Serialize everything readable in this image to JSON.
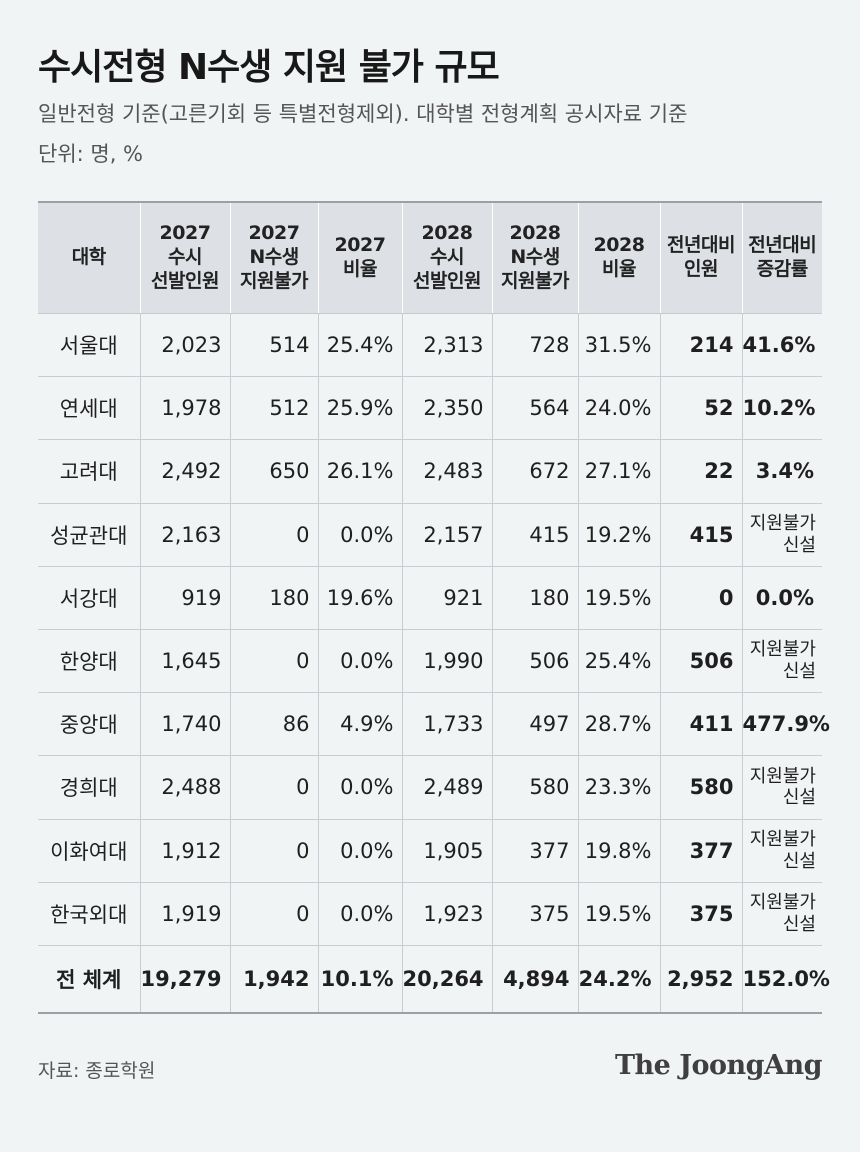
{
  "chart_data": {
    "type": "table",
    "title": "수시전형 N수생 지원 불가 규모",
    "subtitle": "일반전형 기준(고른기회 등 특별전형제외). 대학별 전형계획 공시자료 기준",
    "unit": "단위: 명, %",
    "columns": [
      [
        "대학"
      ],
      [
        "2027",
        "수시",
        "선발인원"
      ],
      [
        "2027",
        "N수생",
        "지원불가"
      ],
      [
        "2027",
        "비율"
      ],
      [
        "2028",
        "수시",
        "선발인원"
      ],
      [
        "2028",
        "N수생",
        "지원불가"
      ],
      [
        "2028",
        "비율"
      ],
      [
        "전년대비",
        "인원"
      ],
      [
        "전년대비",
        "증감률"
      ]
    ],
    "rows": [
      [
        "서울대",
        "2,023",
        "514",
        "25.4%",
        "2,313",
        "728",
        "31.5%",
        "214",
        "41.6%"
      ],
      [
        "연세대",
        "1,978",
        "512",
        "25.9%",
        "2,350",
        "564",
        "24.0%",
        "52",
        "10.2%"
      ],
      [
        "고려대",
        "2,492",
        "650",
        "26.1%",
        "2,483",
        "672",
        "27.1%",
        "22",
        "3.4%"
      ],
      [
        "성균관대",
        "2,163",
        "0",
        "0.0%",
        "2,157",
        "415",
        "19.2%",
        "415",
        "지원불가 신설"
      ],
      [
        "서강대",
        "919",
        "180",
        "19.6%",
        "921",
        "180",
        "19.5%",
        "0",
        "0.0%"
      ],
      [
        "한양대",
        "1,645",
        "0",
        "0.0%",
        "1,990",
        "506",
        "25.4%",
        "506",
        "지원불가 신설"
      ],
      [
        "중앙대",
        "1,740",
        "86",
        "4.9%",
        "1,733",
        "497",
        "28.7%",
        "411",
        "477.9%"
      ],
      [
        "경희대",
        "2,488",
        "0",
        "0.0%",
        "2,489",
        "580",
        "23.3%",
        "580",
        "지원불가 신설"
      ],
      [
        "이화여대",
        "1,912",
        "0",
        "0.0%",
        "1,905",
        "377",
        "19.8%",
        "377",
        "지원불가 신설"
      ],
      [
        "한국외대",
        "1,919",
        "0",
        "0.0%",
        "1,923",
        "375",
        "19.5%",
        "375",
        "지원불가 신설"
      ]
    ],
    "total": [
      "전 체계",
      "19,279",
      "1,942",
      "10.1%",
      "20,264",
      "4,894",
      "24.2%",
      "2,952",
      "152.0%"
    ]
  },
  "footer": {
    "source": "자료: 종로학원",
    "brand": "The JoongAng"
  },
  "colors": {
    "background": "#f1f4f5",
    "header_bg": "#dde1e6",
    "rule": "#9aa0a6"
  }
}
